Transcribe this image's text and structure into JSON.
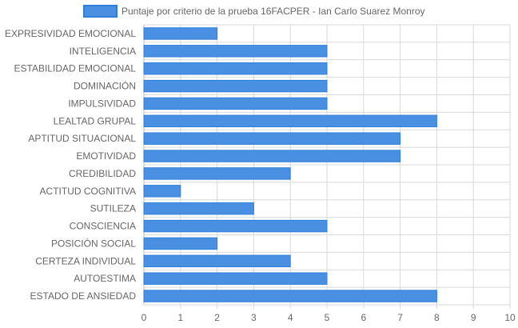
{
  "chart_data": {
    "type": "bar",
    "orientation": "horizontal",
    "categories": [
      "EXPRESIVIDAD EMOCIONAL",
      "INTELIGENCIA",
      "ESTABILIDAD EMOCIONAL",
      "DOMINACIÓN",
      "IMPULSIVIDAD",
      "LEALTAD GRUPAL",
      "APTITUD SITUACIONAL",
      "EMOTIVIDAD",
      "CREDIBILIDAD",
      "ACTITUD COGNITIVA",
      "SUTILEZA",
      "CONSCIENCIA",
      "POSICIÓN SOCIAL",
      "CERTEZA INDIVIDUAL",
      "AUTOESTIMA",
      "ESTADO DE ANSIEDAD"
    ],
    "series": [
      {
        "name": "Puntaje por criterio de la prueba 16FACPER - Ian Carlo Suarez Monroy",
        "values": [
          2,
          5,
          5,
          5,
          5,
          8,
          7,
          7,
          4,
          1,
          3,
          5,
          2,
          4,
          5,
          8
        ],
        "color": "#4a90e2",
        "border_color": "#2f7fd9"
      }
    ],
    "xlim": [
      0,
      10
    ],
    "x_ticks": [
      "0",
      "1",
      "2",
      "3",
      "4",
      "5",
      "6",
      "7",
      "8",
      "9",
      "10"
    ],
    "grid": true,
    "legend_position": "top-center"
  }
}
